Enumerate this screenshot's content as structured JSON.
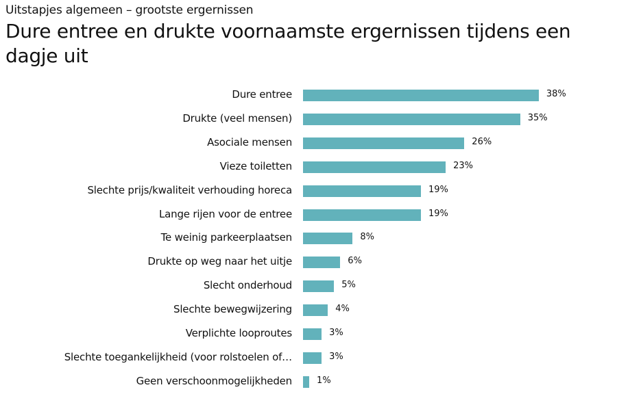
{
  "header": {
    "subtitle": "Uitstapjes algemeen – grootste ergernissen",
    "title": "Dure entree en drukte voornaamste ergernissen tijdens een dagje uit"
  },
  "colors": {
    "bar": "#62b2bb",
    "text": "#111111",
    "background": "#ffffff"
  },
  "chart_data": {
    "type": "bar",
    "orientation": "horizontal",
    "title": "Dure entree en drukte voornaamste ergernissen tijdens een dagje uit",
    "subtitle": "Uitstapjes algemeen – grootste ergernissen",
    "xlabel": "",
    "ylabel": "",
    "unit": "%",
    "grid": false,
    "legend": null,
    "xlim": [
      0,
      40
    ],
    "categories": [
      "Dure entree",
      "Drukte (veel mensen)",
      "Asociale mensen",
      "Vieze toiletten",
      "Slechte prijs/kwaliteit verhouding horeca",
      "Lange rijen voor de entree",
      "Te weinig parkeerplaatsen",
      "Drukte op weg naar het uitje",
      "Slecht onderhoud",
      "Slechte bewegwijzering",
      "Verplichte looproutes",
      "Slechte toegankelijkheid (voor rolstoelen of…",
      "Geen verschoonmogelijkheden"
    ],
    "values": [
      38,
      35,
      26,
      23,
      19,
      19,
      8,
      6,
      5,
      4,
      3,
      3,
      1
    ],
    "value_labels": [
      "38%",
      "35%",
      "26%",
      "23%",
      "19%",
      "19%",
      "8%",
      "6%",
      "5%",
      "4%",
      "3%",
      "3%",
      "1%"
    ]
  }
}
